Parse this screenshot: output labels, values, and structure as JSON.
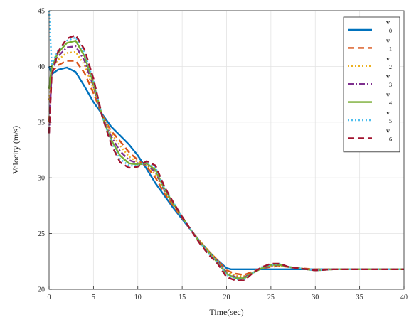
{
  "chart_data": {
    "type": "line",
    "title": "",
    "xlabel": "Time(sec)",
    "ylabel": "Velocity (m/s)",
    "xlim": [
      0,
      40
    ],
    "ylim": [
      20,
      45
    ],
    "xticks": [
      0,
      5,
      10,
      15,
      20,
      25,
      30,
      35,
      40
    ],
    "yticks": [
      20,
      25,
      30,
      35,
      40,
      45
    ],
    "grid": true,
    "legend_position": "top-right",
    "series": [
      {
        "name": "v",
        "subscript": "0",
        "color": "#0072BD",
        "style": "solid",
        "x": [
          0,
          0.3,
          1,
          2,
          3,
          4,
          5,
          6,
          7,
          8,
          9,
          10,
          11,
          12,
          13,
          14,
          15,
          16,
          17,
          18,
          19,
          20,
          20.5,
          25,
          30,
          35,
          40
        ],
        "y": [
          40,
          39.3,
          39.7,
          39.9,
          39.5,
          38.2,
          36.8,
          35.7,
          34.6,
          33.8,
          33,
          32,
          30.8,
          29.5,
          28.4,
          27.3,
          26.3,
          25.3,
          24.3,
          23.4,
          22.6,
          21.9,
          21.8,
          21.8,
          21.8,
          21.8,
          21.8
        ]
      },
      {
        "name": "v",
        "subscript": "1",
        "color": "#D95319",
        "style": "dashed",
        "x": [
          0,
          0.3,
          1,
          2,
          3,
          4,
          5,
          6,
          7,
          8,
          9,
          10,
          11,
          12,
          13,
          14,
          15,
          16,
          17,
          18,
          19,
          20,
          21,
          22,
          23,
          24,
          25,
          26,
          27,
          28,
          30,
          32,
          35,
          40
        ],
        "y": [
          35,
          39.5,
          40.1,
          40.5,
          40.5,
          39.4,
          37.6,
          35.6,
          34.2,
          33.3,
          32.3,
          31.6,
          31,
          30,
          28.6,
          27.5,
          26.4,
          25.3,
          24.3,
          23.4,
          22.6,
          21.7,
          21.4,
          21.3,
          21.6,
          21.9,
          22,
          22.1,
          22,
          21.9,
          21.8,
          21.8,
          21.8,
          21.8
        ]
      },
      {
        "name": "v",
        "subscript": "2",
        "color": "#EDB120",
        "style": "dotted",
        "x": [
          0,
          0.3,
          1,
          2,
          3,
          4,
          5,
          6,
          7,
          8,
          9,
          10,
          11,
          12,
          13,
          14,
          15,
          16,
          17,
          18,
          19,
          20,
          21,
          22,
          23,
          24,
          25,
          26,
          27,
          28,
          30,
          32,
          35,
          40
        ],
        "y": [
          37,
          39.8,
          40.6,
          41.2,
          41.3,
          40.1,
          38,
          35.6,
          34,
          32.9,
          31.9,
          31.4,
          31.1,
          30.3,
          28.8,
          27.6,
          26.5,
          25.3,
          24.3,
          23.4,
          22.6,
          21.6,
          21.2,
          21.2,
          21.5,
          21.9,
          22.1,
          22.1,
          22,
          21.9,
          21.7,
          21.8,
          21.8,
          21.8
        ]
      },
      {
        "name": "v",
        "subscript": "3",
        "color": "#7E2F8E",
        "style": "dashdot",
        "x": [
          0,
          0.3,
          1,
          2,
          3,
          4,
          5,
          6,
          7,
          8,
          9,
          10,
          11,
          12,
          13,
          14,
          15,
          16,
          17,
          18,
          19,
          20,
          21,
          22,
          23,
          24,
          25,
          26,
          27,
          28,
          30,
          32,
          35,
          40
        ],
        "y": [
          34,
          39.6,
          40.9,
          41.7,
          41.8,
          40.5,
          38.2,
          35.5,
          33.7,
          32.4,
          31.6,
          31.3,
          31.2,
          30.5,
          28.9,
          27.7,
          26.5,
          25.3,
          24.2,
          23.3,
          22.5,
          21.5,
          21.1,
          21.1,
          21.5,
          21.9,
          22.1,
          22.2,
          22,
          21.9,
          21.7,
          21.8,
          21.8,
          21.8
        ]
      },
      {
        "name": "v",
        "subscript": "4",
        "color": "#77AC30",
        "style": "solid",
        "x": [
          0,
          0.3,
          1,
          2,
          3,
          4,
          5,
          6,
          7,
          8,
          9,
          10,
          11,
          12,
          13,
          14,
          15,
          16,
          17,
          18,
          19,
          20,
          21,
          22,
          23,
          24,
          25,
          26,
          27,
          28,
          30,
          32,
          35,
          40
        ],
        "y": [
          38,
          40,
          41.2,
          42.1,
          42.3,
          40.9,
          38.5,
          35.5,
          33.4,
          32,
          31.3,
          31.2,
          31.3,
          30.7,
          29,
          27.7,
          26.5,
          25.3,
          24.2,
          23.3,
          22.4,
          21.4,
          21,
          21,
          21.5,
          21.9,
          22.2,
          22.2,
          22,
          21.9,
          21.7,
          21.8,
          21.8,
          21.8
        ]
      },
      {
        "name": "v",
        "subscript": "5",
        "color": "#4DBEEE",
        "style": "dotted",
        "x": [
          0,
          0.3,
          1,
          2,
          3,
          4,
          5,
          6,
          7,
          8,
          9,
          10,
          11,
          12,
          13,
          14,
          15,
          16,
          17,
          18,
          19,
          20,
          21,
          22,
          23,
          24,
          25,
          26,
          27,
          28,
          30,
          32,
          35,
          40
        ],
        "y": [
          45,
          40.2,
          41.4,
          42.3,
          42.6,
          41.2,
          38.7,
          35.5,
          33.2,
          31.7,
          31.1,
          31.1,
          31.4,
          30.9,
          29.1,
          27.8,
          26.5,
          25.3,
          24.2,
          23.2,
          22.4,
          21.3,
          20.9,
          20.9,
          21.5,
          22,
          22.2,
          22.3,
          22,
          21.9,
          21.7,
          21.8,
          21.8,
          21.8
        ]
      },
      {
        "name": "v",
        "subscript": "6",
        "color": "#A2142F",
        "style": "dashed",
        "x": [
          0,
          0.3,
          1,
          2,
          3,
          4,
          5,
          6,
          7,
          8,
          9,
          10,
          11,
          12,
          13,
          14,
          15,
          16,
          17,
          18,
          19,
          20,
          21,
          22,
          23,
          24,
          25,
          26,
          27,
          28,
          30,
          32,
          35,
          40
        ],
        "y": [
          34,
          39.2,
          41.3,
          42.5,
          42.8,
          41.5,
          38.9,
          35.5,
          33,
          31.4,
          30.9,
          31,
          31.5,
          31.1,
          29.2,
          27.8,
          26.5,
          25.3,
          24.1,
          23.1,
          22.3,
          21.1,
          20.8,
          20.8,
          21.5,
          22,
          22.3,
          22.3,
          22,
          21.9,
          21.7,
          21.8,
          21.8,
          21.8
        ]
      }
    ]
  }
}
